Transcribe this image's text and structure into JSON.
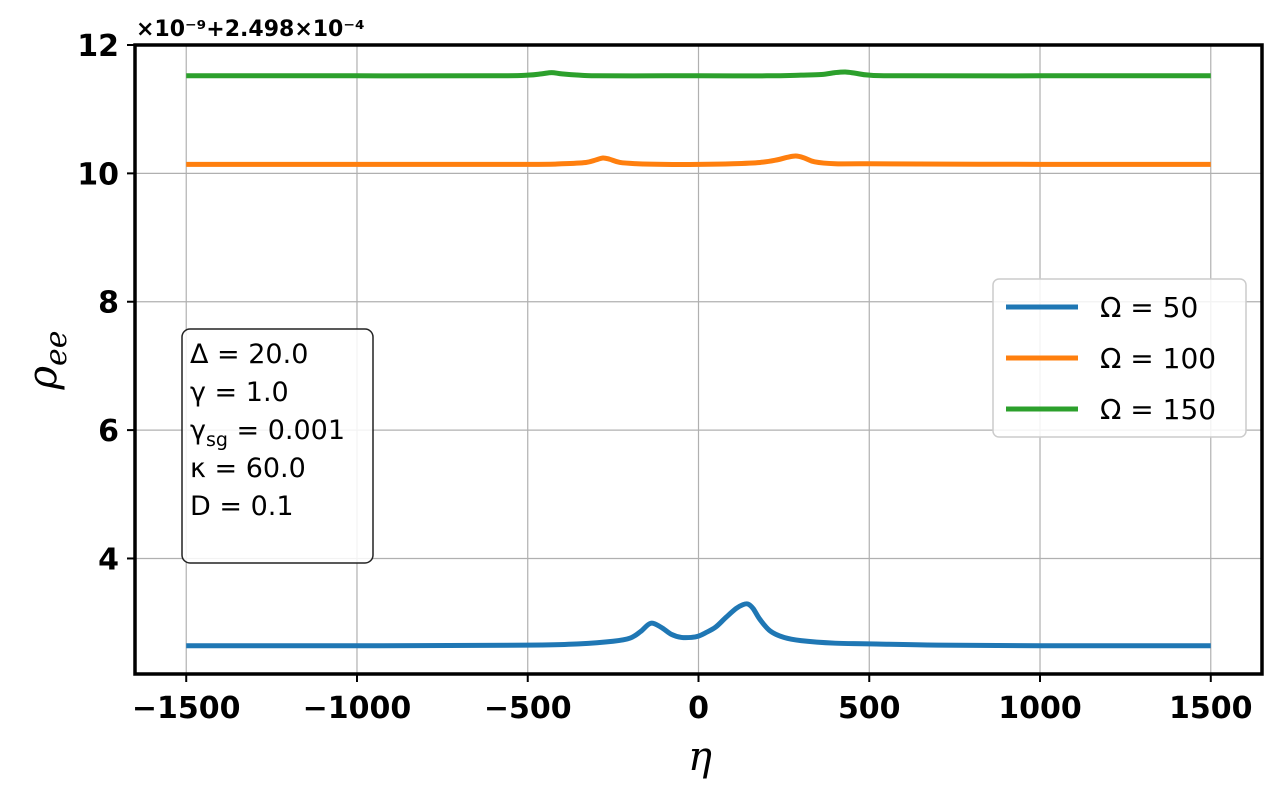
{
  "chart_data": {
    "type": "line",
    "xlabel": "η",
    "ylabel": "ρee",
    "ylabel_main": "ρ",
    "ylabel_sub": "ee",
    "offset_text": "×10⁻⁹+2.498×10⁻⁴",
    "xlim": [
      -1650,
      1650
    ],
    "ylim": [
      2.2,
      12.0
    ],
    "x_ticks": [
      -1500,
      -1000,
      -500,
      0,
      500,
      1000,
      1500
    ],
    "x_tick_labels": [
      "−1500",
      "−1000",
      "−500",
      "0",
      "500",
      "1000",
      "1500"
    ],
    "y_ticks": [
      4,
      6,
      8,
      10,
      12
    ],
    "y_tick_labels": [
      "4",
      "6",
      "8",
      "10",
      "12"
    ],
    "grid": true,
    "legend_position": "center-right",
    "series": [
      {
        "name": "Ω = 50",
        "color": "#1f77b4",
        "x": [
          -1500,
          -1000,
          -500,
          -350,
          -250,
          -200,
          -170,
          -140,
          -110,
          -80,
          -50,
          -20,
          0,
          20,
          50,
          80,
          110,
          130,
          145,
          160,
          180,
          210,
          250,
          300,
          400,
          500,
          700,
          1000,
          1500
        ],
        "y": [
          2.64,
          2.64,
          2.65,
          2.67,
          2.71,
          2.76,
          2.86,
          2.99,
          2.93,
          2.82,
          2.77,
          2.77,
          2.79,
          2.84,
          2.93,
          3.08,
          3.22,
          3.28,
          3.29,
          3.22,
          3.05,
          2.87,
          2.77,
          2.72,
          2.68,
          2.67,
          2.65,
          2.64,
          2.64
        ]
      },
      {
        "name": "Ω = 100",
        "color": "#ff7f0e",
        "x": [
          -1500,
          -1000,
          -500,
          -400,
          -330,
          -300,
          -280,
          -260,
          -230,
          -180,
          -100,
          0,
          100,
          180,
          230,
          260,
          285,
          310,
          340,
          400,
          500,
          1000,
          1500
        ],
        "y": [
          10.14,
          10.14,
          10.14,
          10.15,
          10.17,
          10.21,
          10.24,
          10.22,
          10.17,
          10.15,
          10.14,
          10.14,
          10.15,
          10.17,
          10.21,
          10.25,
          10.27,
          10.24,
          10.18,
          10.15,
          10.15,
          10.14,
          10.14
        ]
      },
      {
        "name": "Ω = 150",
        "color": "#2ca02c",
        "x": [
          -1500,
          -1000,
          -600,
          -500,
          -460,
          -430,
          -400,
          -350,
          -300,
          -100,
          0,
          200,
          300,
          360,
          400,
          430,
          460,
          500,
          600,
          1000,
          1500
        ],
        "y": [
          11.52,
          11.52,
          11.52,
          11.53,
          11.55,
          11.57,
          11.55,
          11.53,
          11.52,
          11.52,
          11.52,
          11.52,
          11.53,
          11.54,
          11.57,
          11.58,
          11.56,
          11.53,
          11.52,
          11.52,
          11.52
        ]
      }
    ],
    "annotation": [
      "Δ = 20.0",
      "γ = 1.0",
      "γsg = 0.001",
      "κ = 60.0",
      "D = 0.1"
    ],
    "annotation_parts": [
      {
        "main": "Δ = 20.0"
      },
      {
        "main": "γ = 1.0"
      },
      {
        "pre": "γ",
        "sub": "sg",
        "post": " = 0.001"
      },
      {
        "main": "κ = 60.0"
      },
      {
        "main": "D = 0.1"
      }
    ]
  }
}
